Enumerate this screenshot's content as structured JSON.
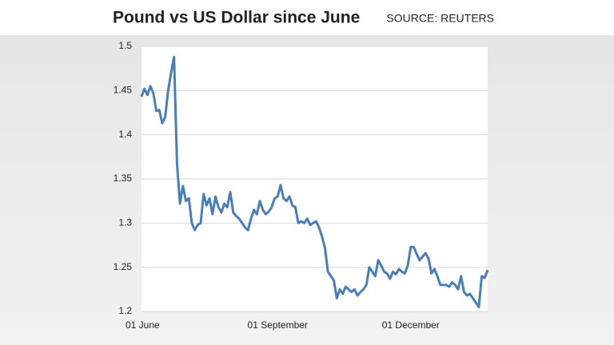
{
  "chart_data": {
    "type": "line",
    "title": "Pound vs US Dollar since June",
    "source": "SOURCE: REUTERS",
    "categories": [
      "01 June",
      null,
      null,
      null,
      null,
      null,
      null,
      null,
      null,
      null,
      null,
      null,
      null,
      null,
      null,
      null,
      null,
      null,
      null,
      null,
      null,
      null,
      null,
      null,
      null,
      null,
      null,
      null,
      null,
      null,
      null,
      null,
      null,
      null,
      null,
      null,
      null,
      null,
      null,
      null,
      null,
      null,
      null,
      null,
      null,
      null,
      "01 September",
      null,
      null,
      null,
      null,
      null,
      null,
      null,
      null,
      null,
      null,
      null,
      null,
      null,
      null,
      null,
      null,
      null,
      null,
      null,
      null,
      null,
      null,
      null,
      null,
      null,
      null,
      null,
      null,
      null,
      null,
      null,
      null,
      null,
      null,
      null,
      null,
      null,
      null,
      null,
      null,
      null,
      null,
      null,
      null,
      "01 December",
      null,
      null,
      null,
      null,
      null,
      null,
      null,
      null,
      null,
      null,
      null,
      null,
      null,
      null,
      null,
      null,
      null,
      null,
      null,
      null,
      null,
      null,
      null,
      null,
      null,
      null
    ],
    "series": [
      {
        "name": "GBP/USD",
        "color": "#4a7ebb",
        "values": [
          1.443,
          1.452,
          1.445,
          1.455,
          1.447,
          1.427,
          1.428,
          1.413,
          1.42,
          1.45,
          1.47,
          1.488,
          1.367,
          1.322,
          1.342,
          1.325,
          1.328,
          1.3,
          1.292,
          1.298,
          1.3,
          1.333,
          1.32,
          1.328,
          1.31,
          1.33,
          1.318,
          1.312,
          1.322,
          1.318,
          1.335,
          1.312,
          1.308,
          1.305,
          1.3,
          1.295,
          1.292,
          1.305,
          1.315,
          1.31,
          1.325,
          1.315,
          1.31,
          1.313,
          1.318,
          1.328,
          1.33,
          1.343,
          1.328,
          1.325,
          1.33,
          1.32,
          1.318,
          1.3,
          1.302,
          1.3,
          1.305,
          1.298,
          1.3,
          1.302,
          1.295,
          1.285,
          1.272,
          1.245,
          1.24,
          1.235,
          1.215,
          1.225,
          1.22,
          1.228,
          1.225,
          1.222,
          1.225,
          1.218,
          1.222,
          1.225,
          1.23,
          1.25,
          1.245,
          1.24,
          1.258,
          1.252,
          1.245,
          1.243,
          1.237,
          1.245,
          1.242,
          1.248,
          1.245,
          1.243,
          1.252,
          1.273,
          1.273,
          1.265,
          1.258,
          1.262,
          1.266,
          1.26,
          1.243,
          1.248,
          1.24,
          1.23,
          1.23,
          1.23,
          1.228,
          1.233,
          1.23,
          1.225,
          1.24,
          1.222,
          1.218,
          1.22,
          1.215,
          1.21,
          1.205,
          1.24,
          1.238,
          1.247
        ]
      }
    ],
    "ylim": [
      1.2,
      1.5
    ],
    "yticks": [
      1.2,
      1.25,
      1.3,
      1.35,
      1.4,
      1.45,
      1.5
    ],
    "grid": true
  }
}
